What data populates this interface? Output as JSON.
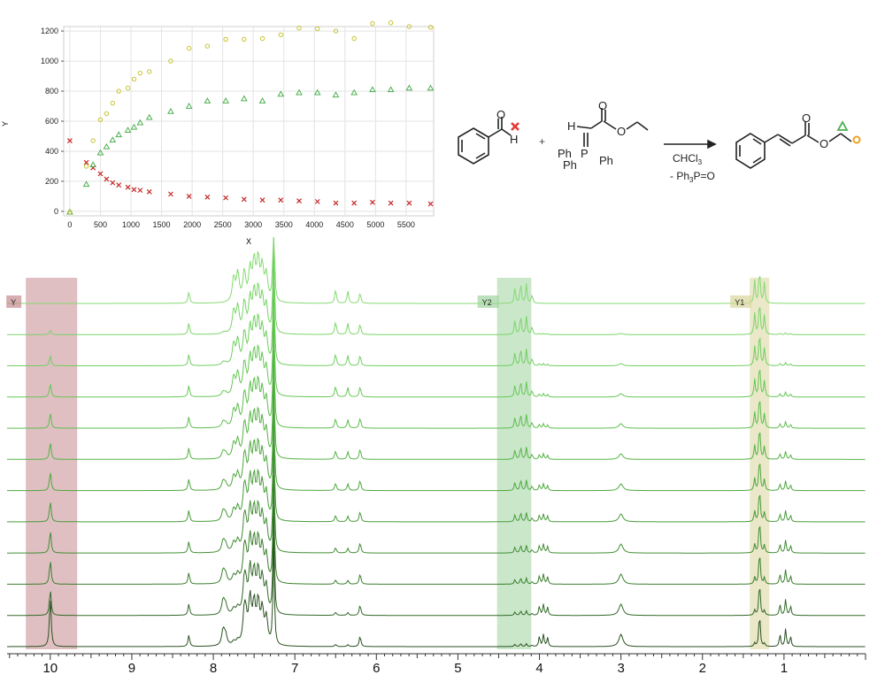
{
  "kinetics": {
    "xlabel": "X",
    "ylabel": "Y",
    "xlim": [
      -100,
      5950
    ],
    "ylim": [
      -30,
      1230
    ],
    "xticks": [
      0,
      500,
      1000,
      1500,
      2000,
      2500,
      3000,
      3500,
      4000,
      4500,
      5000,
      5500
    ],
    "yticks": [
      0,
      200,
      400,
      600,
      800,
      1000,
      1200
    ],
    "colors": {
      "aldehyde": "#c62828",
      "ester_ch2": "#4caf50",
      "ester_ch3": "#c9c232"
    },
    "series": {
      "aldehyde_x": {
        "marker": "x",
        "points": [
          [
            0,
            470
          ],
          [
            270,
            325
          ],
          [
            380,
            290
          ],
          [
            500,
            250
          ],
          [
            600,
            215
          ],
          [
            700,
            190
          ],
          [
            800,
            175
          ],
          [
            950,
            160
          ],
          [
            1050,
            145
          ],
          [
            1150,
            140
          ],
          [
            1300,
            130
          ],
          [
            1650,
            115
          ],
          [
            1950,
            100
          ],
          [
            2250,
            95
          ],
          [
            2550,
            90
          ],
          [
            2850,
            80
          ],
          [
            3150,
            75
          ],
          [
            3450,
            75
          ],
          [
            3750,
            70
          ],
          [
            4050,
            65
          ],
          [
            4350,
            55
          ],
          [
            4650,
            55
          ],
          [
            4950,
            60
          ],
          [
            5250,
            55
          ],
          [
            5550,
            55
          ],
          [
            5900,
            50
          ]
        ]
      },
      "ch2_triangle": {
        "marker": "triangle",
        "points": [
          [
            0,
            -5
          ],
          [
            270,
            180
          ],
          [
            380,
            310
          ],
          [
            500,
            390
          ],
          [
            600,
            430
          ],
          [
            700,
            475
          ],
          [
            800,
            510
          ],
          [
            950,
            540
          ],
          [
            1050,
            560
          ],
          [
            1150,
            590
          ],
          [
            1300,
            625
          ],
          [
            1650,
            665
          ],
          [
            1950,
            700
          ],
          [
            2250,
            735
          ],
          [
            2550,
            735
          ],
          [
            2850,
            750
          ],
          [
            3150,
            735
          ],
          [
            3450,
            780
          ],
          [
            3750,
            790
          ],
          [
            4050,
            790
          ],
          [
            4350,
            775
          ],
          [
            4650,
            790
          ],
          [
            4950,
            810
          ],
          [
            5250,
            810
          ],
          [
            5550,
            820
          ],
          [
            5900,
            820
          ]
        ]
      },
      "ch3_circle": {
        "marker": "circle",
        "points": [
          [
            0,
            -5
          ],
          [
            270,
            300
          ],
          [
            380,
            470
          ],
          [
            500,
            610
          ],
          [
            600,
            650
          ],
          [
            700,
            720
          ],
          [
            800,
            800
          ],
          [
            950,
            820
          ],
          [
            1050,
            880
          ],
          [
            1150,
            920
          ],
          [
            1300,
            930
          ],
          [
            1650,
            1000
          ],
          [
            1950,
            1085
          ],
          [
            2250,
            1100
          ],
          [
            2550,
            1145
          ],
          [
            2850,
            1145
          ],
          [
            3150,
            1150
          ],
          [
            3450,
            1175
          ],
          [
            3750,
            1220
          ],
          [
            4050,
            1215
          ],
          [
            4350,
            1200
          ],
          [
            4650,
            1150
          ],
          [
            4950,
            1250
          ],
          [
            5250,
            1255
          ],
          [
            5550,
            1230
          ],
          [
            5900,
            1225
          ]
        ]
      }
    }
  },
  "scheme": {
    "aldehyde_H": "H",
    "ylide_H": "H",
    "P": "P",
    "Ph1": "Ph",
    "Ph2": "Ph",
    "Ph3": "Ph",
    "plus": "+",
    "solvent": "CHCl",
    "solvent_sub": "3",
    "byproduct_pre": "- Ph",
    "byproduct_sub": "3",
    "byproduct_post": "P=O",
    "O": "O"
  },
  "nmr": {
    "type": "line",
    "ppm_range": [
      10.53,
      0.0
    ],
    "xticks": [
      10,
      9,
      8,
      7,
      6,
      5,
      4,
      3,
      2,
      1
    ],
    "traces": 12,
    "trace_colors": [
      "#2b5020",
      "#326a28",
      "#3a7e2c",
      "#418d33",
      "#479b39",
      "#4ea73f",
      "#55b245",
      "#5dbd4d",
      "#66c756",
      "#70ce5f",
      "#7ad469",
      "#85da73"
    ],
    "regions": [
      {
        "label": "Y",
        "ppm": [
          10.3,
          9.67
        ],
        "color": "#c48a8f"
      },
      {
        "label": "Y2",
        "ppm": [
          4.52,
          4.1
        ],
        "color": "#9fd49f"
      },
      {
        "label": "Y1",
        "ppm": [
          1.42,
          1.18
        ],
        "color": "#d9d69a"
      }
    ],
    "aldehyde_heights": [
      0.0,
      5,
      12,
      16,
      18,
      20,
      22,
      24,
      26,
      28,
      30,
      58
    ]
  }
}
